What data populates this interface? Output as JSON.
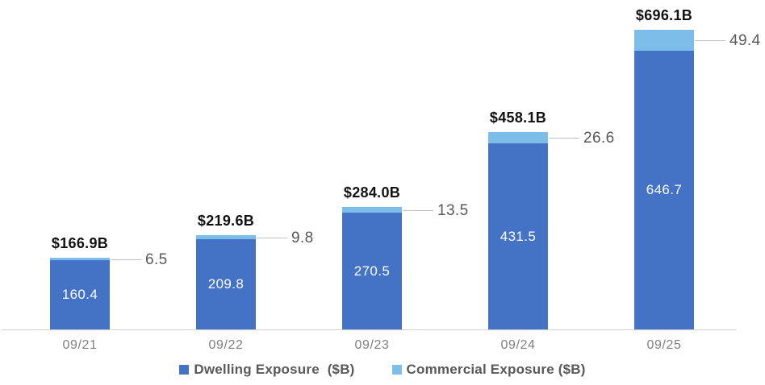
{
  "chart_data": {
    "type": "bar",
    "stacked": true,
    "orientation": "vertical",
    "categories": [
      "09/21",
      "09/22",
      "09/23",
      "09/24",
      "09/25"
    ],
    "series": [
      {
        "name": "Dwelling Exposure  ($B)",
        "color": "#4472c4",
        "values": [
          160.4,
          209.8,
          270.5,
          431.5,
          646.7
        ],
        "label_color": "#ffffff"
      },
      {
        "name": "Commercial Exposure ($B)",
        "color": "#7dbde9",
        "values": [
          6.5,
          9.8,
          13.5,
          26.6,
          49.4
        ],
        "label_color": "#595959"
      }
    ],
    "total_labels": [
      "$166.9B",
      "$219.6B",
      "$284.0B",
      "$458.1B",
      "$696.1B"
    ],
    "dwelling_value_labels": [
      "160.4",
      "209.8",
      "270.5",
      "431.5",
      "646.7"
    ],
    "commercial_callout_labels": [
      "6.5",
      "9.8",
      "13.5",
      "26.6",
      "49.4"
    ],
    "totals": [
      166.9,
      219.6,
      284.0,
      458.1,
      696.1
    ],
    "ylim": [
      0,
      696.1
    ],
    "grid": false,
    "y_axis_visible": false,
    "legend_position": "bottom",
    "legend": [
      {
        "label": "Dwelling Exposure  ($B)",
        "color": "#4472c4"
      },
      {
        "label": "Commercial Exposure ($B)",
        "color": "#7dbde9"
      }
    ],
    "colors": {
      "axis_line": "#d2d2d2",
      "leader_line": "#bfbfbf",
      "total_label": "#111111",
      "tick_label": "#7f7f7f",
      "callout_label": "#595959"
    }
  }
}
